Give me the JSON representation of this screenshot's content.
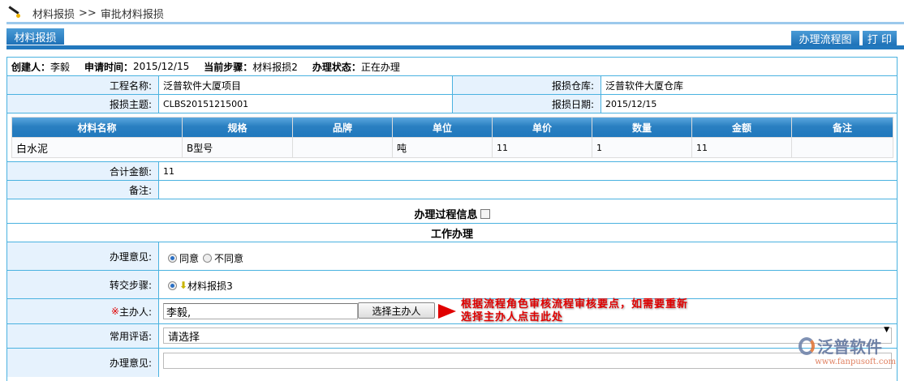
{
  "breadcrumb": {
    "parent": "材料报损",
    "separator": ">>",
    "current": "审批材料报损"
  },
  "tab": "材料报损",
  "toolbar": {
    "flow_chart": "办理流程图",
    "print": "打 印"
  },
  "info": {
    "creator_label": "创建人：",
    "creator": "李毅",
    "apply_time_label": "申请时间：",
    "apply_time": "2015/12/15",
    "step_label": "当前步骤：",
    "step": "材料报损2",
    "status_label": "办理状态：",
    "status": "正在办理"
  },
  "form": {
    "project_label": "工程名称:",
    "project": "泛普软件大厦项目",
    "warehouse_label": "报损仓库:",
    "warehouse": "泛普软件大厦仓库",
    "subject_label": "报损主题:",
    "subject": "CLBS20151215001",
    "date_label": "报损日期:",
    "date": "2015/12/15"
  },
  "materials": {
    "headers": [
      "材料名称",
      "规格",
      "品牌",
      "单位",
      "单价",
      "数量",
      "金额",
      "备注"
    ],
    "rows": [
      [
        "白水泥",
        "B型号",
        "",
        "吨",
        "11",
        "1",
        "11",
        ""
      ]
    ]
  },
  "total_label": "合计金额:",
  "total": "11",
  "remark_label": "备注:",
  "remark": "",
  "process_info_label": "办理过程信息",
  "work_title": "工作办理",
  "opinion": {
    "label": "办理意见:",
    "agree": "同意",
    "disagree": "不同意",
    "selected": "同意"
  },
  "next_step": {
    "label": "转交步骤:",
    "option": "材料报损3"
  },
  "handler": {
    "required_mark": "※",
    "label": "主办人:",
    "value": "李毅,",
    "button": "选择主办人"
  },
  "common_comment": {
    "label": "常用评语:",
    "value": "请选择"
  },
  "handle_opinion": {
    "label": "办理意见:",
    "value": ""
  },
  "annotation": [
    "根据流程角色审核流程审核要点，如需要重新",
    "选择主办人点击此处"
  ],
  "logo": {
    "text": "泛普软件",
    "url": "www.fanpusoft.com"
  }
}
